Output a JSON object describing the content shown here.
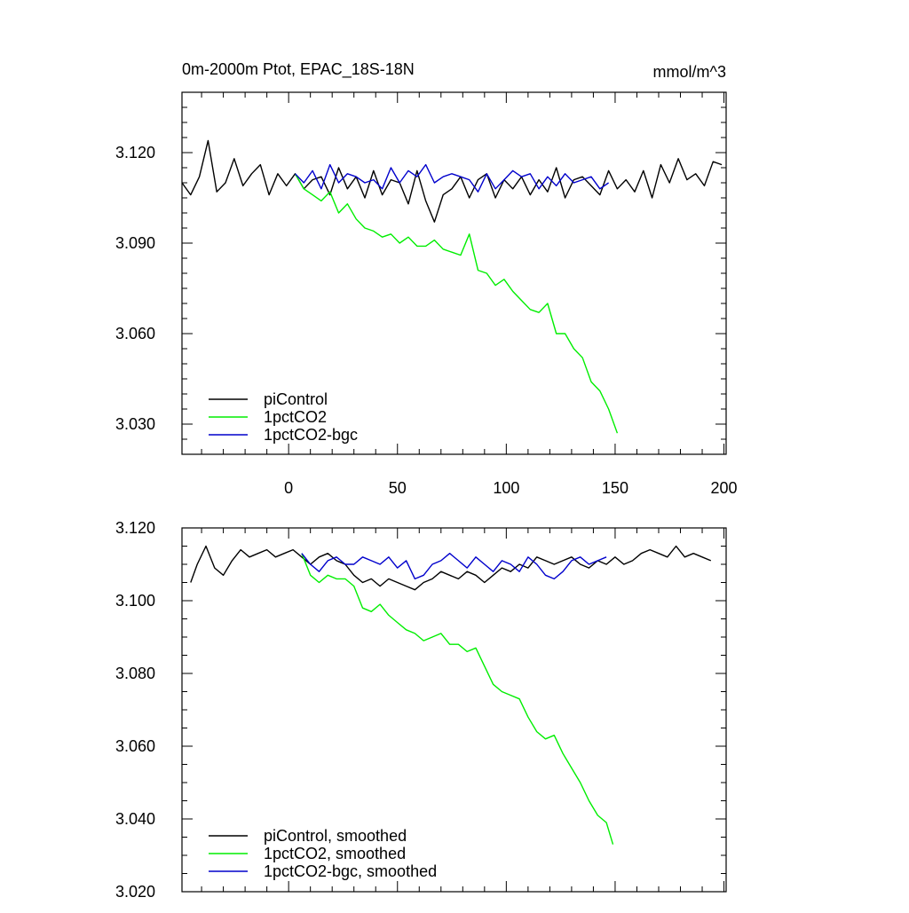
{
  "chart_data": [
    {
      "type": "line",
      "title": "0m-2000m Ptot, EPAC_18S-18N",
      "units": "mmol/m^3",
      "xlim": [
        -49,
        201
      ],
      "ylim": [
        3.02,
        3.14
      ],
      "xticks": [
        0,
        50,
        100,
        150,
        200
      ],
      "yticks": [
        3.03,
        3.06,
        3.09,
        3.12
      ],
      "ytick_labels": [
        "3.030",
        "3.060",
        "3.090",
        "3.120"
      ],
      "grid": false,
      "legend_position": "bottom-left",
      "series": [
        {
          "name": "piControl",
          "color": "#000000",
          "x": [
            -49,
            -45,
            -41,
            -37,
            -33,
            -29,
            -25,
            -21,
            -17,
            -13,
            -9,
            -5,
            -1,
            3,
            7,
            11,
            15,
            19,
            23,
            27,
            31,
            35,
            39,
            43,
            47,
            51,
            55,
            59,
            63,
            67,
            71,
            75,
            79,
            83,
            87,
            91,
            95,
            99,
            103,
            107,
            111,
            115,
            119,
            123,
            127,
            131,
            135,
            139,
            143,
            147,
            151,
            155,
            159,
            163,
            167,
            171,
            175,
            179,
            183,
            187,
            191,
            195,
            199
          ],
          "y": [
            3.11,
            3.106,
            3.112,
            3.124,
            3.107,
            3.11,
            3.118,
            3.109,
            3.113,
            3.116,
            3.106,
            3.113,
            3.109,
            3.113,
            3.108,
            3.111,
            3.112,
            3.106,
            3.115,
            3.108,
            3.112,
            3.105,
            3.114,
            3.106,
            3.111,
            3.11,
            3.103,
            3.114,
            3.104,
            3.097,
            3.106,
            3.108,
            3.112,
            3.105,
            3.111,
            3.113,
            3.105,
            3.111,
            3.108,
            3.112,
            3.106,
            3.111,
            3.107,
            3.115,
            3.105,
            3.111,
            3.112,
            3.109,
            3.106,
            3.114,
            3.108,
            3.111,
            3.107,
            3.114,
            3.105,
            3.116,
            3.11,
            3.118,
            3.111,
            3.113,
            3.109,
            3.117,
            3.116
          ]
        },
        {
          "name": "1pctCO2",
          "color": "#00ee00",
          "x": [
            3,
            7,
            11,
            15,
            19,
            23,
            27,
            31,
            35,
            39,
            43,
            47,
            51,
            55,
            59,
            63,
            67,
            71,
            75,
            79,
            83,
            87,
            91,
            95,
            99,
            103,
            107,
            111,
            115,
            119,
            123,
            127,
            131,
            135,
            139,
            143,
            147,
            151
          ],
          "y": [
            3.113,
            3.108,
            3.106,
            3.104,
            3.107,
            3.1,
            3.103,
            3.098,
            3.095,
            3.094,
            3.092,
            3.093,
            3.09,
            3.092,
            3.089,
            3.089,
            3.091,
            3.088,
            3.087,
            3.086,
            3.093,
            3.081,
            3.08,
            3.076,
            3.078,
            3.074,
            3.071,
            3.068,
            3.067,
            3.07,
            3.06,
            3.06,
            3.055,
            3.052,
            3.044,
            3.041,
            3.035,
            3.027
          ]
        },
        {
          "name": "1pctCO2-bgc",
          "color": "#0000cc",
          "x": [
            3,
            7,
            11,
            15,
            19,
            23,
            27,
            31,
            35,
            39,
            43,
            47,
            51,
            55,
            59,
            63,
            67,
            71,
            75,
            79,
            83,
            87,
            91,
            95,
            99,
            103,
            107,
            111,
            115,
            119,
            123,
            127,
            131,
            135,
            139,
            143,
            147
          ],
          "y": [
            3.113,
            3.11,
            3.114,
            3.108,
            3.116,
            3.11,
            3.113,
            3.112,
            3.11,
            3.111,
            3.108,
            3.115,
            3.11,
            3.114,
            3.112,
            3.116,
            3.11,
            3.112,
            3.113,
            3.112,
            3.111,
            3.107,
            3.113,
            3.108,
            3.111,
            3.114,
            3.112,
            3.113,
            3.108,
            3.112,
            3.109,
            3.113,
            3.11,
            3.111,
            3.112,
            3.108,
            3.11
          ]
        }
      ]
    },
    {
      "type": "line",
      "title": "",
      "xlim": [
        -49,
        201
      ],
      "ylim": [
        3.02,
        3.12
      ],
      "xticks": [
        0,
        50,
        100,
        150,
        200
      ],
      "yticks": [
        3.02,
        3.04,
        3.06,
        3.08,
        3.1,
        3.12
      ],
      "ytick_labels": [
        "3.020",
        "3.040",
        "3.060",
        "3.080",
        "3.100",
        "3.120"
      ],
      "grid": false,
      "legend_position": "bottom-left",
      "series": [
        {
          "name": "piControl, smoothed",
          "color": "#000000",
          "x": [
            -45,
            -42,
            -38,
            -34,
            -30,
            -26,
            -22,
            -18,
            -14,
            -10,
            -6,
            -2,
            2,
            6,
            10,
            14,
            18,
            22,
            26,
            30,
            34,
            38,
            42,
            46,
            50,
            54,
            58,
            62,
            66,
            70,
            74,
            78,
            82,
            86,
            90,
            94,
            98,
            102,
            106,
            110,
            114,
            118,
            122,
            126,
            130,
            134,
            138,
            142,
            146,
            150,
            154,
            158,
            162,
            166,
            170,
            174,
            178,
            182,
            186,
            190,
            194
          ],
          "y": [
            3.105,
            3.11,
            3.115,
            3.109,
            3.107,
            3.111,
            3.114,
            3.112,
            3.113,
            3.114,
            3.112,
            3.113,
            3.114,
            3.112,
            3.11,
            3.112,
            3.113,
            3.111,
            3.11,
            3.107,
            3.105,
            3.106,
            3.104,
            3.106,
            3.105,
            3.104,
            3.103,
            3.105,
            3.106,
            3.108,
            3.107,
            3.106,
            3.108,
            3.107,
            3.105,
            3.107,
            3.109,
            3.108,
            3.11,
            3.109,
            3.112,
            3.111,
            3.11,
            3.111,
            3.112,
            3.11,
            3.109,
            3.111,
            3.11,
            3.112,
            3.11,
            3.111,
            3.113,
            3.114,
            3.113,
            3.112,
            3.115,
            3.112,
            3.113,
            3.112,
            3.111
          ]
        },
        {
          "name": "1pctCO2, smoothed",
          "color": "#00ee00",
          "x": [
            6,
            10,
            14,
            18,
            22,
            26,
            30,
            34,
            38,
            42,
            46,
            50,
            54,
            58,
            62,
            66,
            70,
            74,
            78,
            82,
            86,
            90,
            94,
            98,
            102,
            106,
            110,
            114,
            118,
            122,
            126,
            130,
            134,
            138,
            142,
            146,
            149
          ],
          "y": [
            3.113,
            3.107,
            3.105,
            3.107,
            3.106,
            3.106,
            3.104,
            3.098,
            3.097,
            3.099,
            3.096,
            3.094,
            3.092,
            3.091,
            3.089,
            3.09,
            3.091,
            3.088,
            3.088,
            3.086,
            3.087,
            3.082,
            3.077,
            3.075,
            3.074,
            3.073,
            3.068,
            3.064,
            3.062,
            3.063,
            3.058,
            3.054,
            3.05,
            3.045,
            3.041,
            3.039,
            3.033
          ]
        },
        {
          "name": "1pctCO2-bgc, smoothed",
          "color": "#0000cc",
          "x": [
            6,
            10,
            14,
            18,
            22,
            26,
            30,
            34,
            38,
            42,
            46,
            50,
            54,
            58,
            62,
            66,
            70,
            74,
            78,
            82,
            86,
            90,
            94,
            98,
            102,
            106,
            110,
            114,
            118,
            122,
            126,
            130,
            134,
            138,
            142,
            146
          ],
          "y": [
            3.113,
            3.11,
            3.108,
            3.111,
            3.112,
            3.11,
            3.11,
            3.112,
            3.111,
            3.11,
            3.112,
            3.109,
            3.111,
            3.106,
            3.107,
            3.11,
            3.111,
            3.113,
            3.111,
            3.109,
            3.112,
            3.11,
            3.108,
            3.111,
            3.11,
            3.108,
            3.112,
            3.11,
            3.107,
            3.106,
            3.108,
            3.111,
            3.112,
            3.11,
            3.111,
            3.112
          ]
        }
      ]
    }
  ]
}
